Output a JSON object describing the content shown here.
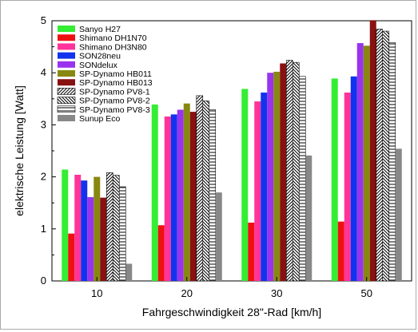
{
  "chart_data": {
    "type": "bar",
    "title": "",
    "xlabel": "Fahrgeschwindigkeit 28\"-Rad [km/h]",
    "ylabel": "elektrische Leistung [Watt]",
    "ylim": [
      0,
      5
    ],
    "yticks": [
      "0",
      "1",
      "2",
      "3",
      "4",
      "5"
    ],
    "categories": [
      "10",
      "20",
      "30",
      "50"
    ],
    "legend_position": "top-left",
    "grid": false,
    "series": [
      {
        "name": "Sanyo H27",
        "color": "#33ee33",
        "pattern": "solid",
        "values": [
          2.14,
          3.39,
          3.69,
          3.89
        ]
      },
      {
        "name": "Shimano DH1N70",
        "color": "#ee1111",
        "pattern": "solid",
        "values": [
          0.91,
          1.07,
          1.12,
          1.14
        ]
      },
      {
        "name": "Shimano DH3N80",
        "color": "#ff3399",
        "pattern": "solid",
        "values": [
          2.04,
          3.16,
          3.45,
          3.62
        ]
      },
      {
        "name": "SON28neu",
        "color": "#1133ee",
        "pattern": "solid",
        "values": [
          1.93,
          3.2,
          3.62,
          3.93
        ]
      },
      {
        "name": "SONdelux",
        "color": "#9933ee",
        "pattern": "solid",
        "values": [
          1.61,
          3.29,
          4.0,
          4.57
        ]
      },
      {
        "name": "SP-Dynamo HB011",
        "color": "#888811",
        "pattern": "solid",
        "values": [
          2.0,
          3.41,
          4.02,
          4.52
        ]
      },
      {
        "name": "SP-Dynamo HB013",
        "color": "#881111",
        "pattern": "solid",
        "values": [
          1.6,
          3.25,
          4.18,
          5.01
        ]
      },
      {
        "name": "SP-Dynamo PV8-1",
        "color": "#000000",
        "pattern": "diag",
        "values": [
          2.08,
          3.56,
          4.24,
          4.84
        ]
      },
      {
        "name": "SP-Dynamo PV8-2",
        "color": "#000000",
        "pattern": "diag2",
        "values": [
          2.03,
          3.46,
          4.2,
          4.8
        ]
      },
      {
        "name": "SP-Dynamo PV8-3",
        "color": "#000000",
        "pattern": "horiz",
        "values": [
          1.81,
          3.29,
          3.93,
          4.58
        ]
      },
      {
        "name": "Sunup Eco",
        "color": "#888888",
        "pattern": "solid",
        "values": [
          0.33,
          1.7,
          2.41,
          2.54
        ]
      }
    ]
  }
}
